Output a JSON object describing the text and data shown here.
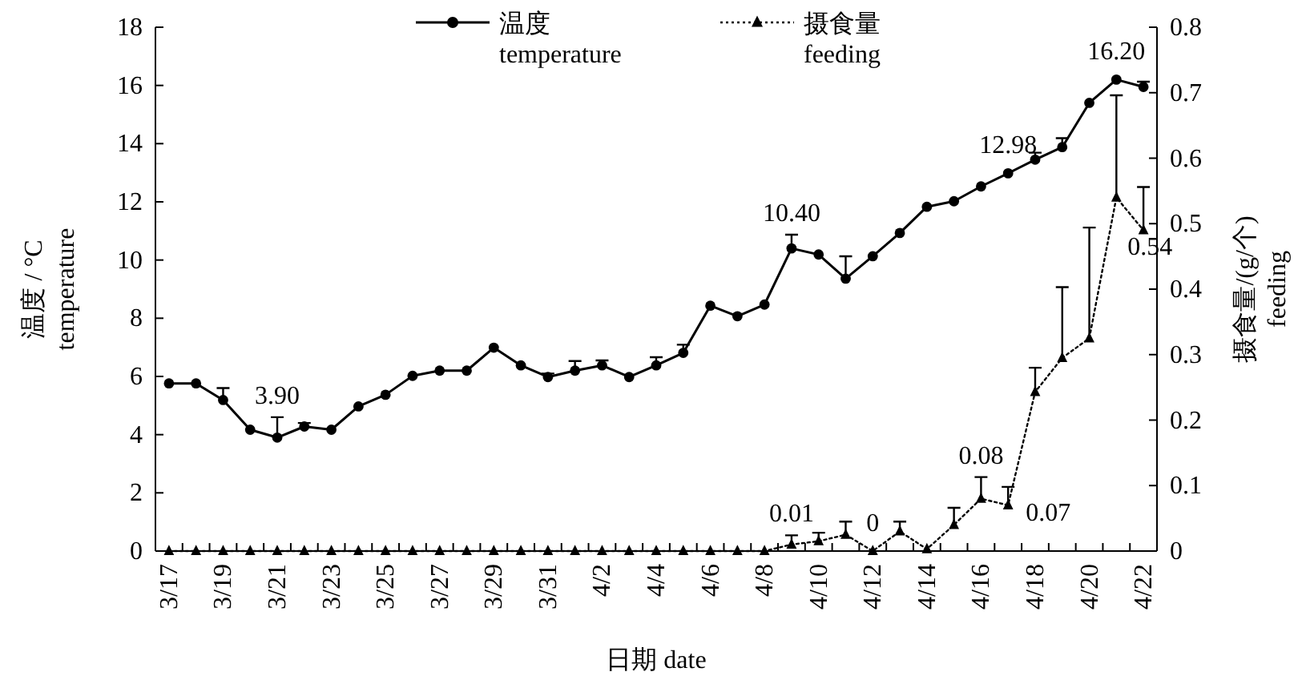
{
  "chart_data": {
    "type": "line",
    "xlabel": "日期  date",
    "ylabel": "温度 / °C\ntemperature",
    "y2label": "摄食量/(g/个)\nfeeding",
    "categories": [
      "3/17",
      null,
      "3/19",
      null,
      "3/21",
      null,
      "3/23",
      null,
      "3/25",
      null,
      "3/27",
      null,
      "3/29",
      null,
      "3/31",
      null,
      "4/2",
      null,
      "4/4",
      null,
      "4/6",
      null,
      "4/8",
      null,
      "4/10",
      null,
      "4/12",
      null,
      "4/14",
      null,
      "4/16",
      null,
      "4/18",
      null,
      "4/20",
      null,
      "4/22"
    ],
    "ylim": [
      0,
      18
    ],
    "yticks": [
      0,
      2,
      4,
      6,
      8,
      10,
      12,
      14,
      16,
      18
    ],
    "y2lim": [
      0,
      0.8
    ],
    "y2ticks": [
      0,
      0.1,
      0.2,
      0.3,
      0.4,
      0.5,
      0.6,
      0.7,
      0.8
    ],
    "grid": false,
    "legend": "top",
    "series": [
      {
        "name": "温度\ntemperature",
        "color": "#000000",
        "marker": "circle",
        "line_style": "solid",
        "values": [
          5.76,
          5.76,
          5.19,
          4.17,
          3.9,
          4.28,
          4.17,
          4.97,
          5.37,
          6.02,
          6.2,
          6.2,
          6.99,
          6.38,
          5.98,
          6.2,
          6.38,
          5.98,
          6.38,
          6.81,
          8.43,
          8.07,
          8.47,
          10.4,
          10.19,
          9.36,
          10.13,
          10.93,
          11.83,
          12.02,
          12.53,
          12.98,
          13.45,
          13.88,
          15.4,
          16.2,
          15.95
        ],
        "errors": [
          null,
          null,
          [
            5.19,
            5.6
          ],
          null,
          [
            3.9,
            4.6
          ],
          [
            4.28,
            4.4
          ],
          null,
          null,
          null,
          null,
          null,
          null,
          null,
          null,
          [
            5.98,
            6.1
          ],
          [
            6.2,
            6.53
          ],
          [
            6.38,
            6.55
          ],
          null,
          [
            6.38,
            6.66
          ],
          [
            6.81,
            7.09
          ],
          null,
          null,
          null,
          [
            10.4,
            10.87
          ],
          null,
          [
            9.36,
            10.13
          ],
          null,
          null,
          null,
          null,
          null,
          null,
          [
            13.45,
            13.69
          ],
          [
            13.88,
            14.19
          ],
          null,
          null,
          [
            15.95,
            16.13
          ]
        ],
        "value_labels": [
          null,
          null,
          null,
          null,
          "3.90",
          null,
          null,
          null,
          null,
          null,
          null,
          null,
          null,
          null,
          null,
          null,
          null,
          null,
          null,
          null,
          null,
          null,
          null,
          "10.40",
          null,
          null,
          null,
          null,
          null,
          null,
          null,
          "12.98",
          null,
          null,
          null,
          "16.20",
          null
        ]
      },
      {
        "name": "摄食量\nfeeding",
        "color": "#000000",
        "marker": "triangle",
        "line_style": "dotted",
        "axis": "y2",
        "values": [
          0,
          0,
          0,
          0,
          0,
          0,
          0,
          0,
          0,
          0,
          0,
          0,
          0,
          0,
          0,
          0,
          0,
          0,
          0,
          0,
          0,
          0,
          0,
          0.01,
          0.015,
          0.025,
          0,
          0.03,
          0.003,
          0.04,
          0.08,
          0.07,
          0.243,
          0.295,
          0.325,
          0.54,
          0.49
        ],
        "errors": [
          null,
          null,
          null,
          null,
          null,
          null,
          null,
          null,
          null,
          null,
          null,
          null,
          null,
          null,
          null,
          null,
          null,
          null,
          null,
          null,
          null,
          null,
          null,
          [
            0.01,
            0.024
          ],
          [
            0.015,
            0.028
          ],
          [
            0.025,
            0.045
          ],
          null,
          [
            0.03,
            0.045
          ],
          null,
          [
            0.04,
            0.066
          ],
          [
            0.08,
            0.113
          ],
          [
            0.07,
            0.098
          ],
          [
            0.243,
            0.28
          ],
          [
            0.295,
            0.403
          ],
          [
            0.325,
            0.494
          ],
          [
            0.54,
            0.696
          ],
          [
            0.49,
            0.556
          ]
        ],
        "value_labels": [
          null,
          null,
          null,
          null,
          null,
          null,
          null,
          null,
          null,
          null,
          null,
          null,
          null,
          null,
          null,
          null,
          null,
          null,
          null,
          null,
          null,
          null,
          null,
          "0.01",
          null,
          null,
          "0",
          null,
          null,
          null,
          "0.08",
          "0.07",
          null,
          null,
          null,
          "0.54",
          null
        ]
      }
    ]
  }
}
